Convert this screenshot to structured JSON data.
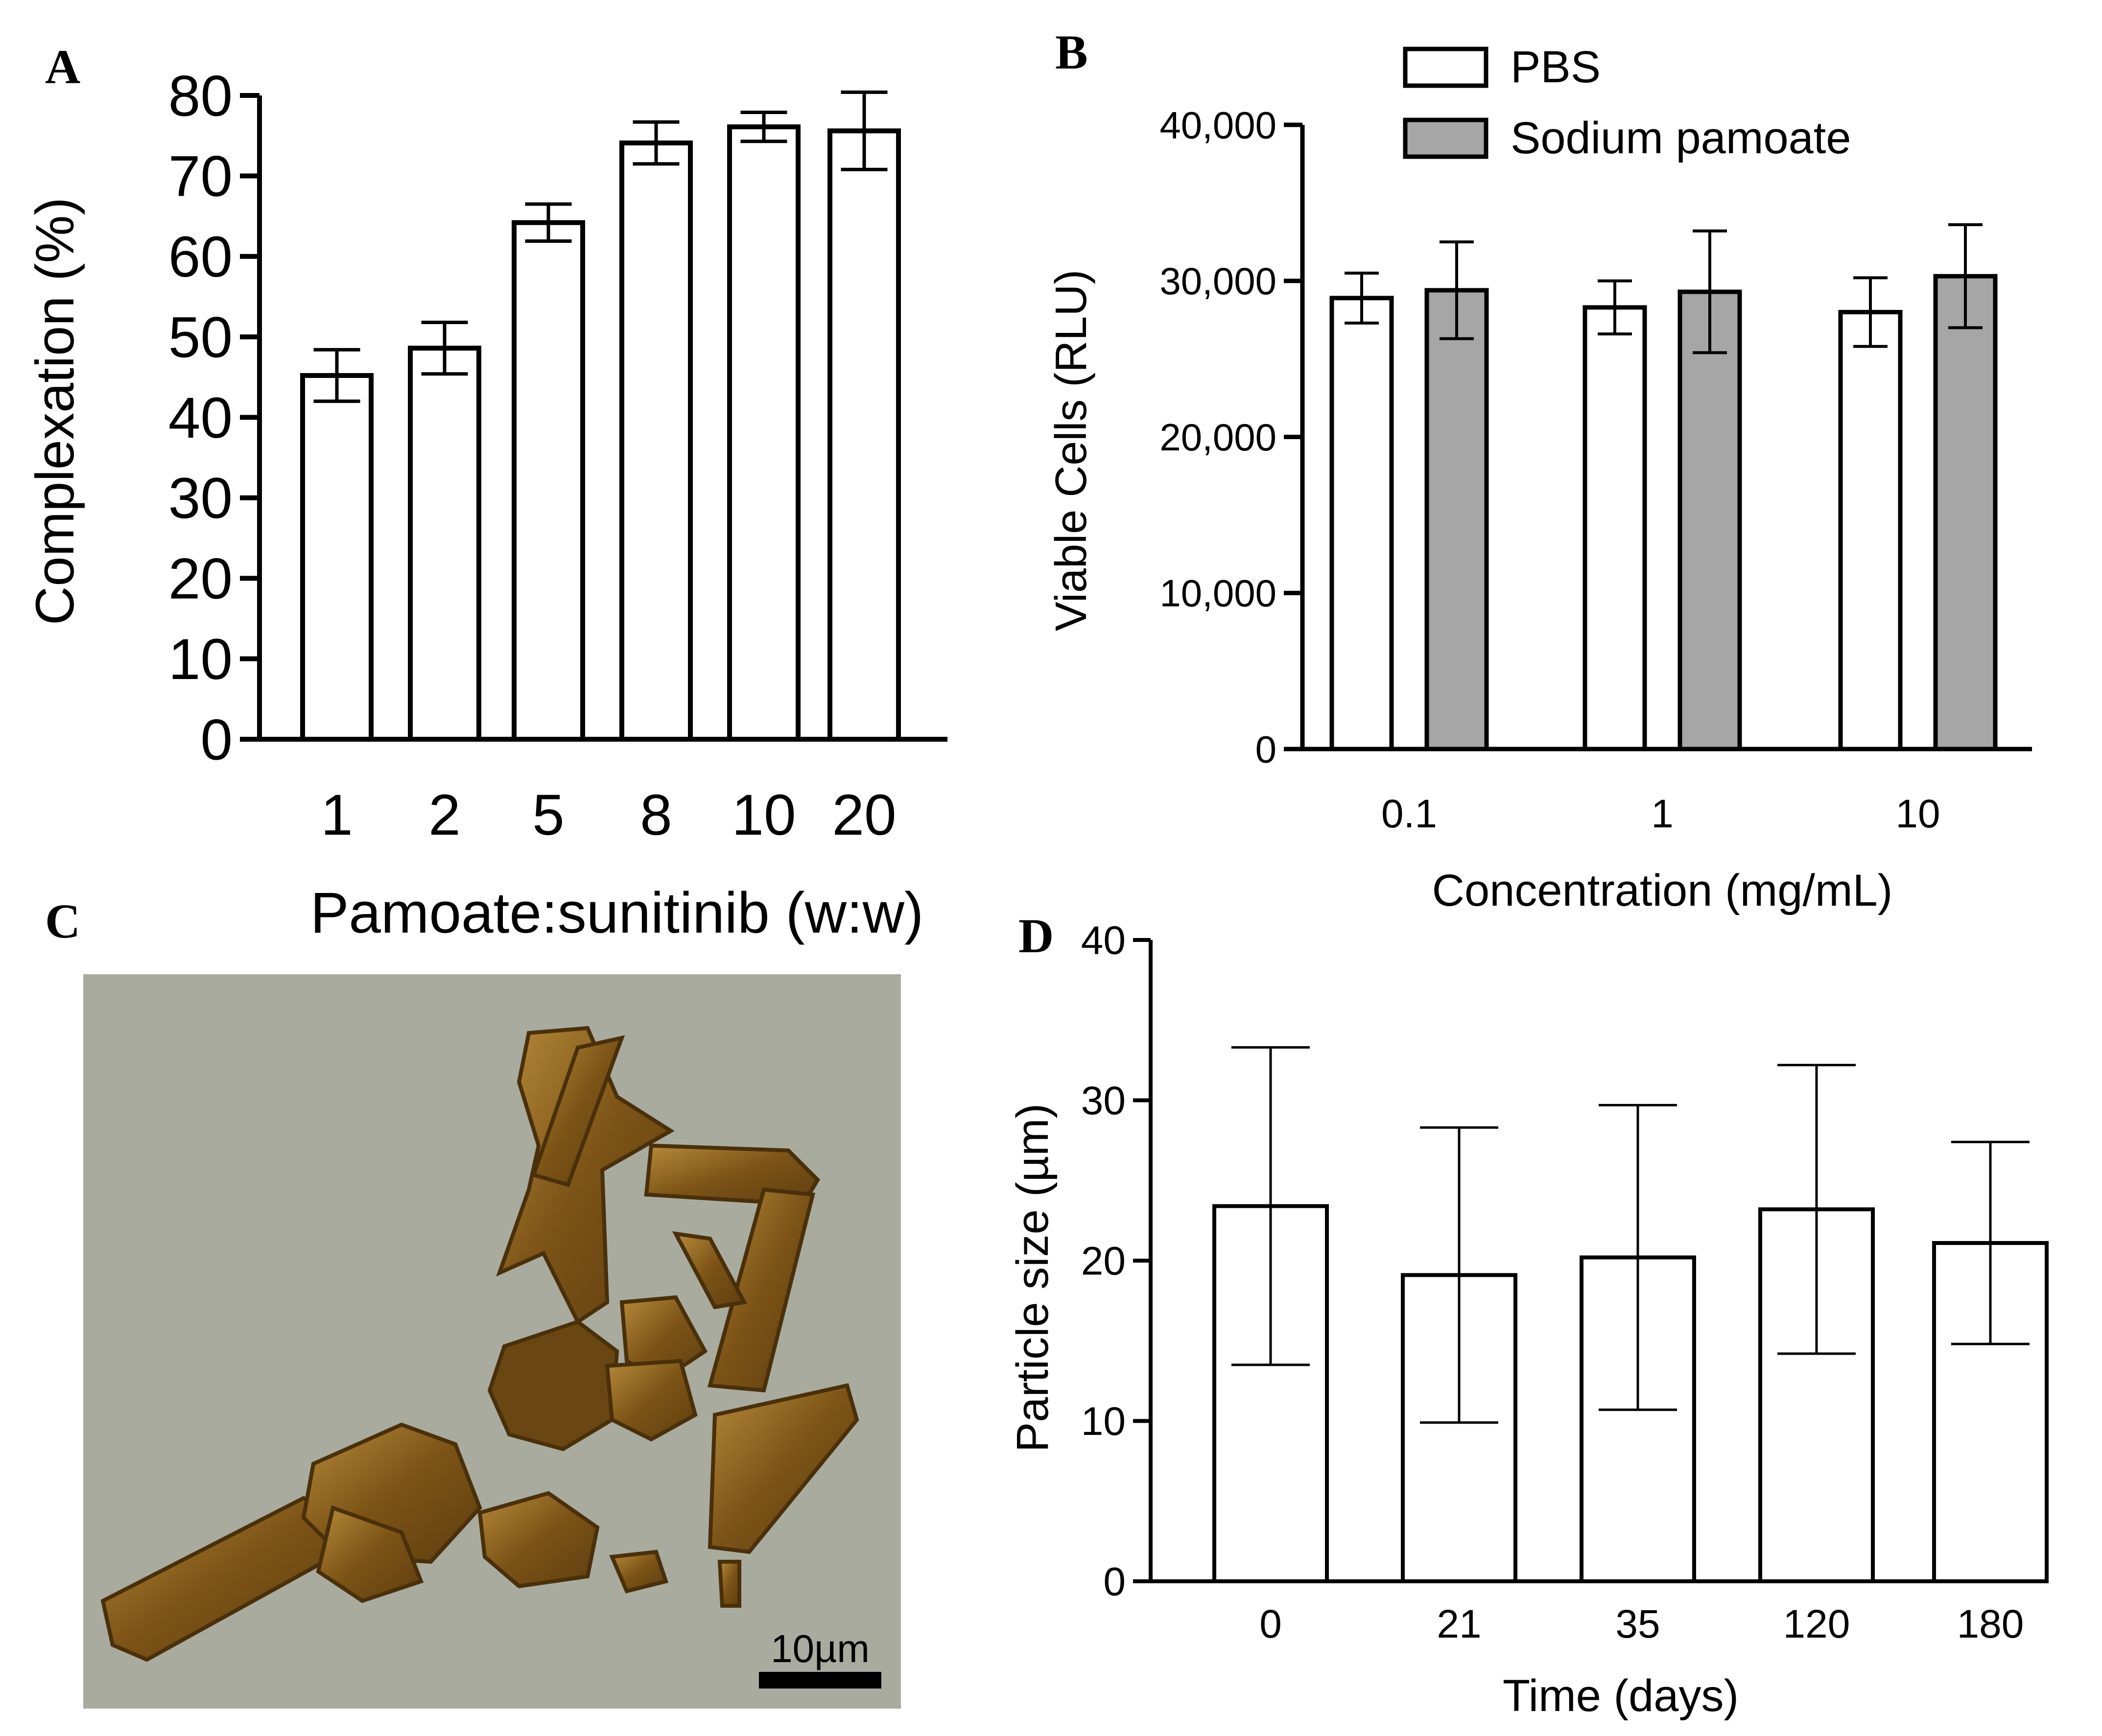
{
  "figure": {
    "panel_labels": {
      "a": "A",
      "b": "B",
      "c": "C",
      "d": "D"
    },
    "colors": {
      "axis": "#000000",
      "bar_open": "#ffffff",
      "bar_filled": "#a6a6a6",
      "micrograph_bg": "#a9ab9f",
      "crystal": "#8a5c1c"
    }
  },
  "chart_data": [
    {
      "panel": "A",
      "type": "bar",
      "title": "",
      "xlabel": "Pamoate:sunitinib (w:w)",
      "ylabel": "Complexation (%)",
      "categories": [
        "1",
        "2",
        "5",
        "8",
        "10",
        "20"
      ],
      "values": [
        45.2,
        48.6,
        64.2,
        74.1,
        76.1,
        75.6
      ],
      "errors": [
        3.2,
        3.2,
        2.3,
        2.6,
        1.8,
        4.8
      ],
      "ylim": [
        0,
        80
      ],
      "yticks": [
        "0",
        "10",
        "20",
        "30",
        "40",
        "50",
        "60",
        "70",
        "80"
      ]
    },
    {
      "panel": "B",
      "type": "bar",
      "title": "",
      "xlabel": "Concentration (mg/mL)",
      "ylabel": "Viable Cells (RLU)",
      "categories": [
        "0.1",
        "1",
        "10"
      ],
      "series": [
        {
          "name": "PBS",
          "values": [
            28900,
            28300,
            28000
          ],
          "errors": [
            1600,
            1700,
            2200
          ]
        },
        {
          "name": "Sodium pamoate",
          "values": [
            29400,
            29300,
            30300
          ],
          "errors": [
            3100,
            3900,
            3300
          ]
        }
      ],
      "ylim": [
        0,
        40000
      ],
      "yticks": [
        "0",
        "10,000",
        "20,000",
        "30,000",
        "40,000"
      ],
      "legend": "top-center"
    },
    {
      "panel": "D",
      "type": "bar",
      "title": "",
      "xlabel": "Time (days)",
      "ylabel": "Particle size (µm)",
      "categories": [
        "0",
        "21",
        "35",
        "120",
        "180"
      ],
      "values": [
        23.4,
        19.1,
        20.2,
        23.2,
        21.1
      ],
      "errors": [
        9.9,
        9.2,
        9.5,
        9.0,
        6.3
      ],
      "ylim": [
        0,
        40
      ],
      "yticks": [
        "0",
        "10",
        "20",
        "30",
        "40"
      ]
    }
  ],
  "micrograph": {
    "panel": "C",
    "scale_bar_label": "10µm",
    "subject": "sunitinib pamoate crystals"
  }
}
